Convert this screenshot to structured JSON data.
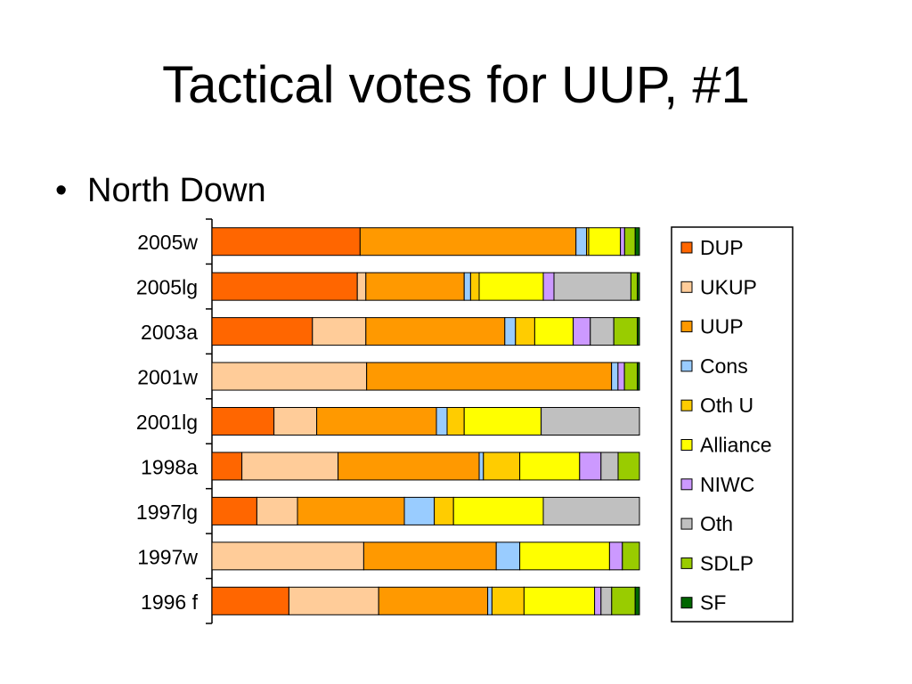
{
  "slide": {
    "title": "Tactical votes for UUP, #1",
    "bullet_symbol": "•",
    "bullet_text": "North Down"
  },
  "chart_data": {
    "type": "bar",
    "orientation": "horizontal",
    "stacked": "percent",
    "title": "",
    "xlabel": "",
    "ylabel": "",
    "xlim": [
      0,
      100
    ],
    "legend_position": "right",
    "grid": false,
    "categories": [
      "2005w",
      "2005lg",
      "2003a",
      "2001w",
      "2001lg",
      "1998a",
      "1997lg",
      "1997w",
      "1996 f"
    ],
    "series": [
      {
        "name": "DUP",
        "color": "#ff6600",
        "values": [
          35,
          34,
          23.5,
          0,
          14.5,
          7,
          10.5,
          0,
          18
        ]
      },
      {
        "name": "UKUP",
        "color": "#ffcc99",
        "values": [
          0,
          2,
          12.5,
          36,
          10,
          22.5,
          9.5,
          35.5,
          21
        ]
      },
      {
        "name": "UUP",
        "color": "#ff9900",
        "values": [
          51,
          23,
          32.5,
          57,
          28,
          33,
          25,
          31,
          25.5
        ]
      },
      {
        "name": "Cons",
        "color": "#99ccff",
        "values": [
          2.5,
          1.5,
          2.5,
          1.5,
          2.5,
          1,
          7,
          5.5,
          1
        ]
      },
      {
        "name": "Oth U",
        "color": "#ffcc00",
        "values": [
          0.5,
          2,
          4.5,
          0,
          4,
          8.5,
          4.5,
          0,
          7.5
        ]
      },
      {
        "name": "Alliance",
        "color": "#ffff00",
        "values": [
          7.5,
          15,
          9,
          0,
          18,
          14,
          21,
          21,
          16.5
        ]
      },
      {
        "name": "NIWC",
        "color": "#cc99ff",
        "values": [
          1,
          2.5,
          4,
          1.5,
          0,
          5,
          0,
          3,
          1.5
        ]
      },
      {
        "name": "Oth",
        "color": "#c0c0c0",
        "values": [
          0,
          18,
          5.5,
          0,
          23,
          4,
          22.5,
          0,
          2.5
        ]
      },
      {
        "name": "SDLP",
        "color": "#99cc00",
        "values": [
          2.5,
          1.5,
          5.5,
          3,
          0,
          5,
          0,
          4,
          5.5
        ]
      },
      {
        "name": "SF",
        "color": "#006600",
        "values": [
          1,
          0.5,
          0.5,
          0.5,
          0,
          0,
          0,
          0,
          1
        ]
      }
    ]
  }
}
